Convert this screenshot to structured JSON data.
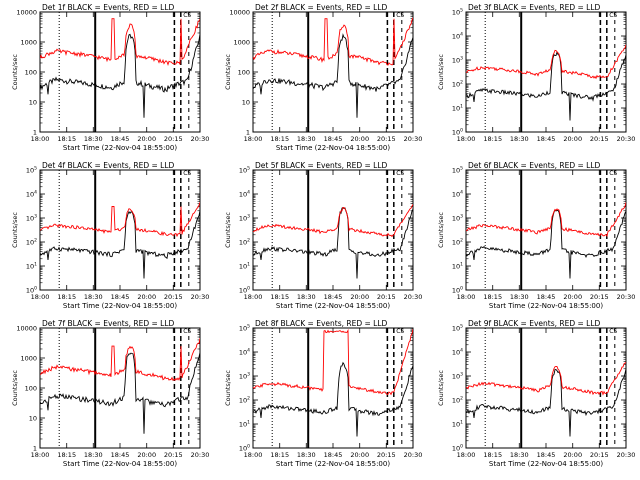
{
  "chart_data": [
    {
      "type": "line",
      "title": "Det 1f BLACK = Events, RED = LLD",
      "xlabel": "Start Time (22-Nov-04 18:55:00)",
      "ylabel": "Counts/sec",
      "x_tick_labels": [
        "18:00",
        "18:15",
        "18:30",
        "18:45",
        "20:00",
        "20:15",
        "20:30"
      ],
      "y_tick_labels": [
        "1",
        "10",
        "100",
        "1000",
        "10000"
      ],
      "y_scale": "log",
      "ylim": [
        1,
        10000
      ],
      "series": [
        {
          "color": "#000000",
          "profile": "black_base",
          "peak": 1600
        },
        {
          "color": "#ff0000",
          "profile": "red_spiky",
          "peak": 6000
        }
      ]
    },
    {
      "type": "line",
      "title": "Det 2f BLACK = Events, RED = LLD",
      "xlabel": "Start Time (22-Nov-04 18:55:00)",
      "ylabel": "Counts/sec",
      "x_tick_labels": [
        "18:00",
        "18:15",
        "18:30",
        "18:45",
        "20:00",
        "20:15",
        "20:30"
      ],
      "y_tick_labels": [
        "1",
        "10",
        "100",
        "1000",
        "10000"
      ],
      "y_scale": "log",
      "ylim": [
        1,
        10000
      ],
      "series": [
        {
          "color": "#000000",
          "profile": "black_base",
          "peak": 1500
        },
        {
          "color": "#ff0000",
          "profile": "red_spiky",
          "peak": 6000
        }
      ]
    },
    {
      "type": "line",
      "title": "Det 3f BLACK = Events, RED = LLD",
      "xlabel": "",
      "ylabel": "Counts/sec",
      "x_tick_labels": [
        "18:00",
        "18:15",
        "18:30",
        "18:45",
        "20:00",
        "20:15",
        "20:30"
      ],
      "y_tick_labels": [
        "10^0",
        "10^1",
        "10^2",
        "10^3",
        "10^4",
        "10^5"
      ],
      "y_scale": "log",
      "ylim": [
        1,
        100000
      ],
      "series": [
        {
          "color": "#000000",
          "profile": "black_base",
          "peak": 1800
        },
        {
          "color": "#ff0000",
          "profile": "red_smooth",
          "peak": 2500
        }
      ]
    },
    {
      "type": "line",
      "title": "Det 4f BLACK = Events, RED = LLD",
      "xlabel": "Start Time (22-Nov-04 18:55:00)",
      "ylabel": "Counts/sec",
      "x_tick_labels": [
        "18:00",
        "18:15",
        "18:30",
        "18:45",
        "20:00",
        "20:15",
        "20:30"
      ],
      "y_tick_labels": [
        "10^0",
        "10^1",
        "10^2",
        "10^3",
        "10^4",
        "10^5"
      ],
      "y_scale": "log",
      "ylim": [
        1,
        100000
      ],
      "series": [
        {
          "color": "#000000",
          "profile": "black_base",
          "peak": 1800
        },
        {
          "color": "#ff0000",
          "profile": "red_spiky",
          "peak": 3000
        }
      ]
    },
    {
      "type": "line",
      "title": "Det 5f BLACK = Events, RED = LLD",
      "xlabel": "Start Time (22-Nov-04 18:55:00)",
      "ylabel": "Counts/sec",
      "x_tick_labels": [
        "18:00",
        "18:15",
        "18:30",
        "18:45",
        "20:00",
        "20:15",
        "20:30"
      ],
      "y_tick_labels": [
        "10^0",
        "10^1",
        "10^2",
        "10^3",
        "10^4",
        "10^5"
      ],
      "y_scale": "log",
      "ylim": [
        1,
        100000
      ],
      "series": [
        {
          "color": "#000000",
          "profile": "black_base",
          "peak": 2500
        },
        {
          "color": "#ff0000",
          "profile": "red_smooth",
          "peak": 4000
        }
      ]
    },
    {
      "type": "line",
      "title": "Det 6f BLACK = Events, RED = LLD",
      "xlabel": "Start Time (22-Nov-04 18:55:00)",
      "ylabel": "Counts/sec",
      "x_tick_labels": [
        "18:00",
        "18:15",
        "18:30",
        "18:45",
        "20:00",
        "20:15",
        "20:30"
      ],
      "y_tick_labels": [
        "10^0",
        "10^1",
        "10^2",
        "10^3",
        "10^4",
        "10^5"
      ],
      "y_scale": "log",
      "ylim": [
        1,
        100000
      ],
      "series": [
        {
          "color": "#000000",
          "profile": "black_base",
          "peak": 2000
        },
        {
          "color": "#ff0000",
          "profile": "red_smooth",
          "peak": 3000
        }
      ]
    },
    {
      "type": "line",
      "title": "Det 7f BLACK = Events, RED = LLD",
      "xlabel": "Start Time (22-Nov-04 18:55:00)",
      "ylabel": "Counts/sec",
      "x_tick_labels": [
        "18:00",
        "18:15",
        "18:30",
        "18:45",
        "20:00",
        "20:15",
        "20:30"
      ],
      "y_tick_labels": [
        "1",
        "10",
        "100",
        "1000",
        "10000"
      ],
      "y_scale": "log",
      "ylim": [
        1,
        10000
      ],
      "series": [
        {
          "color": "#000000",
          "profile": "black_base",
          "peak": 1600
        },
        {
          "color": "#ff0000",
          "profile": "red_spiky",
          "peak": 2500
        }
      ]
    },
    {
      "type": "line",
      "title": "Det 8f BLACK = Events, RED = LLD",
      "xlabel": "Start Time (22-Nov-04 18:55:00)",
      "ylabel": "Counts/sec",
      "x_tick_labels": [
        "18:00",
        "18:15",
        "18:30",
        "18:45",
        "20:00",
        "20:15",
        "20:30"
      ],
      "y_tick_labels": [
        "10^0",
        "10^1",
        "10^2",
        "10^3",
        "10^4",
        "10^5"
      ],
      "y_scale": "log",
      "ylim": [
        1,
        100000
      ],
      "series": [
        {
          "color": "#000000",
          "profile": "black_base",
          "peak": 3000
        },
        {
          "color": "#ff0000",
          "profile": "red_plateau",
          "peak": 80000
        }
      ]
    },
    {
      "type": "line",
      "title": "Det 9f BLACK = Events, RED = LLD",
      "xlabel": "Start Time (22-Nov-04 18:55:00)",
      "ylabel": "Counts/sec",
      "x_tick_labels": [
        "18:00",
        "18:15",
        "18:30",
        "18:45",
        "20:00",
        "20:15",
        "20:30"
      ],
      "y_tick_labels": [
        "10^0",
        "10^1",
        "10^2",
        "10^3",
        "10^4",
        "10^5"
      ],
      "y_scale": "log",
      "ylim": [
        1,
        100000
      ],
      "series": [
        {
          "color": "#000000",
          "profile": "black_base",
          "peak": 1800
        },
        {
          "color": "#ff0000",
          "profile": "red_smooth",
          "peak": 3000
        }
      ]
    }
  ]
}
